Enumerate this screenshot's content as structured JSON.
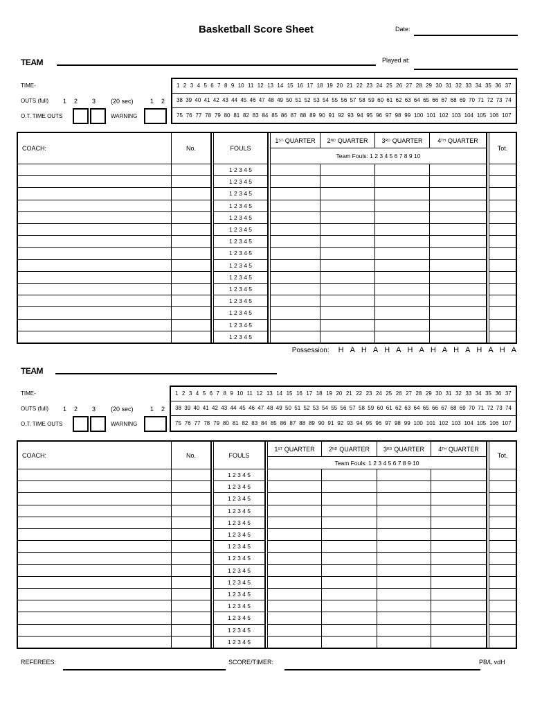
{
  "header": {
    "title": "Basketball Score Sheet",
    "date_label": "Date:",
    "played_at_label": "Played at:"
  },
  "labels": {
    "team": "TEAM",
    "time": "TIME-",
    "outs_full": "OUTS (full)",
    "twenty_sec": "(20 sec)",
    "ot_timeouts": "O.T.  TIME OUTS",
    "warning": "WARNING",
    "full_nums": [
      "1",
      "2",
      "3"
    ],
    "short_nums": [
      "1",
      "2"
    ],
    "coach": "COACH:",
    "no": "No.",
    "fouls": "FOULS",
    "quarters": [
      {
        "n": "1",
        "sup": "ST",
        "q": "QUARTER"
      },
      {
        "n": "2",
        "sup": "ND",
        "q": "QUARTER"
      },
      {
        "n": "3",
        "sup": "RD",
        "q": "QUARTER"
      },
      {
        "n": "4",
        "sup": "TH",
        "q": "QUARTER"
      }
    ],
    "team_fouls": "Team Fouls: 1 2 3 4 5 6 7 8 9 10",
    "total": "Tot.",
    "player_fouls": "1 2 3 4 5",
    "possession_label": "Possession:",
    "possession": [
      "H",
      "A",
      "H",
      "A",
      "H",
      "A",
      "H",
      "A",
      "H",
      "A",
      "H",
      "A",
      "H",
      "A",
      "H",
      "A"
    ]
  },
  "time_rows": [
    [
      "1",
      "2",
      "3",
      "4",
      "5",
      "6",
      "7",
      "8",
      "9",
      "10",
      "11",
      "12",
      "13",
      "14",
      "15",
      "16",
      "17",
      "18",
      "19",
      "20",
      "21",
      "22",
      "23",
      "24",
      "25",
      "26",
      "27",
      "28",
      "29",
      "30",
      "31",
      "32",
      "33",
      "34",
      "35",
      "36",
      "37"
    ],
    [
      "38",
      "39",
      "40",
      "41",
      "42",
      "43",
      "44",
      "45",
      "46",
      "47",
      "48",
      "49",
      "50",
      "51",
      "52",
      "53",
      "54",
      "55",
      "56",
      "57",
      "58",
      "59",
      "60",
      "61",
      "62",
      "63",
      "64",
      "65",
      "66",
      "67",
      "68",
      "69",
      "70",
      "71",
      "72",
      "73",
      "74"
    ],
    [
      "75",
      "76",
      "77",
      "78",
      "79",
      "80",
      "81",
      "82",
      "83",
      "84",
      "85",
      "86",
      "87",
      "88",
      "89",
      "90",
      "91",
      "92",
      "93",
      "94",
      "95",
      "96",
      "97",
      "98",
      "99",
      "100",
      "101",
      "102",
      "103",
      "104",
      "105",
      "106",
      "107"
    ]
  ],
  "player_rows": 15,
  "footer": {
    "referees": "REFEREES:",
    "score_timer": "SCORE/TIMER:",
    "credit": "PB/L vdH"
  }
}
